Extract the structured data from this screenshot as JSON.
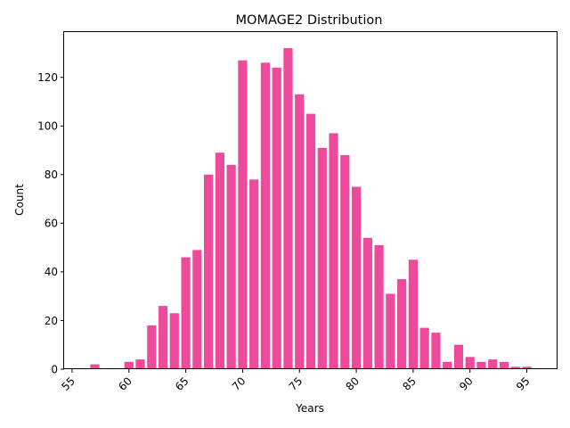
{
  "chart_data": {
    "type": "bar",
    "title": "MOMAGE2 Distribution",
    "xlabel": "Years",
    "ylabel": "Count",
    "bar_color": "#ee4a9c",
    "xlim": [
      54.3,
      97.7
    ],
    "ylim": [
      0,
      138.6
    ],
    "x_ticks": [
      55,
      60,
      65,
      70,
      75,
      80,
      85,
      90,
      95
    ],
    "y_ticks": [
      0,
      20,
      40,
      60,
      80,
      100,
      120
    ],
    "grid": false,
    "legend": "none",
    "x": [
      57,
      60,
      61,
      62,
      63,
      64,
      65,
      66,
      67,
      68,
      69,
      70,
      71,
      72,
      73,
      74,
      75,
      76,
      77,
      78,
      79,
      80,
      81,
      82,
      83,
      84,
      85,
      86,
      87,
      88,
      89,
      90,
      91,
      92,
      93,
      94,
      95
    ],
    "values": [
      2,
      3,
      4,
      18,
      26,
      23,
      46,
      49,
      80,
      89,
      84,
      127,
      78,
      126,
      124,
      132,
      113,
      105,
      91,
      97,
      88,
      75,
      54,
      51,
      31,
      37,
      45,
      17,
      15,
      3,
      10,
      5,
      3,
      4,
      3,
      1,
      1
    ]
  }
}
